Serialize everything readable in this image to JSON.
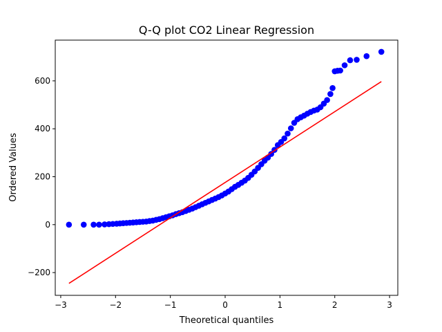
{
  "chart_data": {
    "type": "scatter",
    "title": "Q-Q plot CO2 Linear Regression",
    "xlabel": "Theoretical quantiles",
    "ylabel": "Ordered Values",
    "xlim": [
      -3.1,
      3.15
    ],
    "ylim": [
      -295,
      770
    ],
    "xticks": [
      -3,
      -2,
      -1,
      0,
      1,
      2,
      3
    ],
    "xtick_labels": [
      "−3",
      "−2",
      "−1",
      "0",
      "1",
      "2",
      "3"
    ],
    "yticks": [
      -200,
      0,
      200,
      400,
      600
    ],
    "ytick_labels": [
      "−200",
      "0",
      "200",
      "400",
      "600"
    ],
    "grid": false,
    "legend": "none",
    "series": [
      {
        "kind": "points",
        "color": "#0000ff",
        "points": [
          [
            -2.85,
            0
          ],
          [
            -2.58,
            0
          ],
          [
            -2.4,
            0
          ],
          [
            -2.3,
            0
          ],
          [
            -2.2,
            1
          ],
          [
            -2.12,
            2
          ],
          [
            -2.05,
            3
          ],
          [
            -1.98,
            4
          ],
          [
            -1.92,
            5
          ],
          [
            -1.86,
            6
          ],
          [
            -1.8,
            7
          ],
          [
            -1.74,
            8
          ],
          [
            -1.68,
            9
          ],
          [
            -1.62,
            10
          ],
          [
            -1.56,
            11
          ],
          [
            -1.5,
            12
          ],
          [
            -1.44,
            13
          ],
          [
            -1.38,
            15
          ],
          [
            -1.32,
            17
          ],
          [
            -1.26,
            20
          ],
          [
            -1.2,
            23
          ],
          [
            -1.14,
            27
          ],
          [
            -1.08,
            31
          ],
          [
            -1.02,
            35
          ],
          [
            -0.96,
            39
          ],
          [
            -0.9,
            44
          ],
          [
            -0.84,
            48
          ],
          [
            -0.78,
            52
          ],
          [
            -0.72,
            57
          ],
          [
            -0.66,
            62
          ],
          [
            -0.6,
            67
          ],
          [
            -0.54,
            73
          ],
          [
            -0.48,
            79
          ],
          [
            -0.42,
            85
          ],
          [
            -0.36,
            91
          ],
          [
            -0.3,
            97
          ],
          [
            -0.24,
            103
          ],
          [
            -0.18,
            109
          ],
          [
            -0.12,
            115
          ],
          [
            -0.06,
            122
          ],
          [
            0.0,
            130
          ],
          [
            0.06,
            138
          ],
          [
            0.12,
            148
          ],
          [
            0.18,
            158
          ],
          [
            0.24,
            166
          ],
          [
            0.3,
            175
          ],
          [
            0.36,
            184
          ],
          [
            0.42,
            195
          ],
          [
            0.48,
            208
          ],
          [
            0.54,
            222
          ],
          [
            0.6,
            237
          ],
          [
            0.66,
            252
          ],
          [
            0.72,
            267
          ],
          [
            0.78,
            280
          ],
          [
            0.84,
            295
          ],
          [
            0.9,
            312
          ],
          [
            0.96,
            332
          ],
          [
            1.02,
            345
          ],
          [
            1.08,
            360
          ],
          [
            1.14,
            380
          ],
          [
            1.2,
            402
          ],
          [
            1.26,
            425
          ],
          [
            1.32,
            440
          ],
          [
            1.38,
            448
          ],
          [
            1.44,
            455
          ],
          [
            1.5,
            463
          ],
          [
            1.56,
            470
          ],
          [
            1.62,
            476
          ],
          [
            1.68,
            480
          ],
          [
            1.74,
            490
          ],
          [
            1.8,
            505
          ],
          [
            1.86,
            520
          ],
          [
            1.92,
            545
          ],
          [
            1.96,
            570
          ],
          [
            2.0,
            640
          ],
          [
            2.05,
            642
          ],
          [
            2.1,
            643
          ],
          [
            2.18,
            665
          ],
          [
            2.28,
            686
          ],
          [
            2.4,
            688
          ],
          [
            2.58,
            703
          ],
          [
            2.85,
            721
          ]
        ]
      },
      {
        "kind": "line",
        "color": "#ff0000",
        "points": [
          [
            -2.85,
            -245
          ],
          [
            2.85,
            597
          ]
        ]
      }
    ]
  }
}
